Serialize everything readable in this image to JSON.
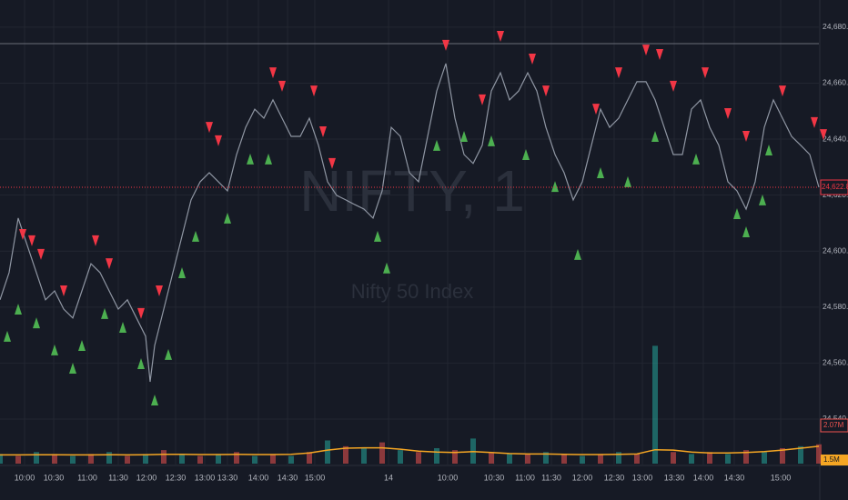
{
  "chart_data": {
    "type": "line",
    "watermark_title": "NIFTY, 1",
    "watermark_subtitle": "Nifty 50 Index",
    "xlim": [
      0,
      900
    ],
    "ylim": [
      24538.7,
      24689.7
    ],
    "yticks": [
      {
        "value": 24540,
        "label": "24,540.00"
      },
      {
        "value": 24560,
        "label": "24,560.00"
      },
      {
        "value": 24580,
        "label": "24,580.00"
      },
      {
        "value": 24600,
        "label": "24,600.00"
      },
      {
        "value": 24620,
        "label": "24,620.00"
      },
      {
        "value": 24640,
        "label": "24,640.00"
      },
      {
        "value": 24660,
        "label": "24,660.00"
      },
      {
        "value": 24680,
        "label": "24,680.00"
      }
    ],
    "xticks": [
      {
        "value": 27,
        "label": "10:00"
      },
      {
        "value": 59,
        "label": "10:30"
      },
      {
        "value": 96,
        "label": "11:00"
      },
      {
        "value": 130,
        "label": "11:30"
      },
      {
        "value": 161,
        "label": "12:00"
      },
      {
        "value": 193,
        "label": "12:30"
      },
      {
        "value": 225,
        "label": "13:00"
      },
      {
        "value": 250,
        "label": "13:30"
      },
      {
        "value": 284,
        "label": "14:00"
      },
      {
        "value": 316,
        "label": "14:30"
      },
      {
        "value": 346,
        "label": "15:00"
      },
      {
        "value": 427,
        "label": "14"
      },
      {
        "value": 492,
        "label": "10:00"
      },
      {
        "value": 543,
        "label": "10:30"
      },
      {
        "value": 577,
        "label": "11:00"
      },
      {
        "value": 606,
        "label": "11:30"
      },
      {
        "value": 640,
        "label": "12:00"
      },
      {
        "value": 675,
        "label": "12:30"
      },
      {
        "value": 706,
        "label": "13:00"
      },
      {
        "value": 741,
        "label": "13:30"
      },
      {
        "value": 773,
        "label": "14:00"
      },
      {
        "value": 807,
        "label": "14:30"
      },
      {
        "value": 858,
        "label": "15:00"
      }
    ],
    "grid": true,
    "reference_line": 24674.1,
    "last_price": {
      "value": 24622.8,
      "label": "24,622.80"
    },
    "x": [
      0,
      10,
      20,
      30,
      40,
      50,
      60,
      70,
      80,
      90,
      100,
      110,
      120,
      130,
      140,
      150,
      160,
      165,
      170,
      180,
      190,
      200,
      210,
      220,
      230,
      240,
      250,
      260,
      270,
      280,
      290,
      300,
      310,
      320,
      330,
      340,
      350,
      360,
      370,
      380,
      390,
      400,
      410,
      420,
      430,
      440,
      450,
      460,
      470,
      480,
      490,
      500,
      510,
      520,
      530,
      540,
      550,
      560,
      570,
      580,
      590,
      600,
      610,
      620,
      630,
      640,
      650,
      660,
      670,
      680,
      690,
      700,
      710,
      720,
      730,
      740,
      750,
      760,
      770,
      780,
      790,
      800,
      810,
      820,
      830,
      840,
      850,
      860,
      870,
      880,
      890,
      900
    ],
    "series": [
      {
        "name": "NIFTY",
        "color": "#8f96a3",
        "values": [
          24582.6,
          24592.3,
          24611.8,
          24602.0,
          24592.3,
          24582.6,
          24585.8,
          24579.3,
          24576.1,
          24585.8,
          24595.5,
          24592.3,
          24585.8,
          24579.3,
          24582.6,
          24576.1,
          24569.6,
          24553.3,
          24566.3,
          24579.3,
          24592.3,
          24605.3,
          24618.3,
          24624.8,
          24628.0,
          24624.8,
          24621.5,
          24634.5,
          24644.2,
          24650.7,
          24647.5,
          24654.0,
          24647.5,
          24641.0,
          24641.0,
          24647.5,
          24637.8,
          24624.8,
          24619.9,
          24618.3,
          24616.6,
          24615.0,
          24611.8,
          24621.5,
          24644.2,
          24641.0,
          24628.0,
          24624.8,
          24641.0,
          24657.2,
          24667.0,
          24647.5,
          24634.5,
          24631.3,
          24637.8,
          24657.2,
          24663.7,
          24654.0,
          24657.2,
          24663.7,
          24657.2,
          24644.2,
          24634.5,
          24628.0,
          24618.3,
          24624.8,
          24637.8,
          24650.7,
          24644.2,
          24647.5,
          24654.0,
          24660.5,
          24660.5,
          24654.0,
          24644.2,
          24634.5,
          24634.5,
          24650.7,
          24654.0,
          24644.2,
          24637.8,
          24624.8,
          24621.5,
          24615.0,
          24624.8,
          24644.2,
          24654.0,
          24647.5,
          24641.0,
          24637.8,
          24634.5,
          24622.8
        ]
      }
    ],
    "sell_signals": {
      "color": "#f23645",
      "x": [
        25,
        35,
        45,
        70,
        105,
        120,
        155,
        175,
        230,
        240,
        300,
        310,
        345,
        355,
        365,
        490,
        530,
        550,
        585,
        600,
        655,
        680,
        710,
        725,
        740,
        775,
        800,
        820,
        860,
        895,
        905
      ],
      "values": [
        24605.9,
        24603.7,
        24598.8,
        24585.8,
        24603.7,
        24595.5,
        24577.7,
        24585.8,
        24644.2,
        24639.4,
        24663.7,
        24658.9,
        24657.2,
        24642.6,
        24631.3,
        24673.5,
        24654.0,
        24676.7,
        24668.6,
        24657.2,
        24650.7,
        24663.7,
        24671.8,
        24670.2,
        24658.9,
        24663.7,
        24649.1,
        24641.0,
        24657.2,
        24645.9,
        24641.6
      ]
    },
    "buy_signals": {
      "color": "#4caf50",
      "x": [
        8,
        20,
        40,
        60,
        80,
        90,
        115,
        135,
        155,
        170,
        185,
        200,
        215,
        250,
        275,
        295,
        415,
        425,
        480,
        510,
        540,
        578,
        610,
        635,
        660,
        690,
        720,
        765,
        810,
        820,
        838,
        845
      ],
      "values": [
        24569.6,
        24579.3,
        24574.4,
        24564.7,
        24558.2,
        24566.3,
        24577.7,
        24572.8,
        24559.8,
        24546.8,
        24563.1,
        24592.3,
        24605.3,
        24611.8,
        24632.9,
        24632.9,
        24605.3,
        24594.0,
        24637.8,
        24641.0,
        24639.4,
        24634.5,
        24623.1,
        24598.8,
        24628.0,
        24624.8,
        24641.0,
        24632.9,
        24613.4,
        24606.9,
        24618.3,
        24636.1
      ]
    },
    "volume": {
      "ylim": [
        0,
        8
      ],
      "label": "2.07M",
      "ma_label": "1.5M",
      "up_color": "#26a69a",
      "down_color": "#ef5350",
      "ma_color": "#f5a623",
      "x": [
        0,
        20,
        40,
        60,
        80,
        100,
        120,
        140,
        160,
        180,
        200,
        220,
        240,
        260,
        280,
        300,
        320,
        340,
        360,
        380,
        400,
        420,
        440,
        460,
        480,
        500,
        520,
        540,
        560,
        580,
        600,
        620,
        640,
        660,
        680,
        700,
        720,
        740,
        760,
        780,
        800,
        820,
        840,
        860,
        880,
        900
      ],
      "values": [
        0.5,
        0.4,
        0.6,
        0.5,
        0.4,
        0.5,
        0.6,
        0.4,
        0.5,
        0.7,
        0.5,
        0.4,
        0.5,
        0.6,
        0.4,
        0.5,
        0.4,
        0.6,
        1.2,
        0.9,
        0.8,
        1.1,
        0.7,
        0.6,
        0.8,
        0.7,
        1.3,
        0.6,
        0.5,
        0.5,
        0.6,
        0.5,
        0.4,
        0.5,
        0.6,
        0.5,
        6.1,
        0.6,
        0.5,
        0.6,
        0.5,
        0.7,
        0.6,
        0.8,
        0.9,
        1.0
      ],
      "ma_values": [
        0.45,
        0.45,
        0.46,
        0.46,
        0.45,
        0.45,
        0.46,
        0.45,
        0.46,
        0.48,
        0.48,
        0.47,
        0.47,
        0.48,
        0.47,
        0.47,
        0.48,
        0.55,
        0.7,
        0.8,
        0.82,
        0.82,
        0.75,
        0.65,
        0.6,
        0.58,
        0.62,
        0.58,
        0.52,
        0.5,
        0.5,
        0.48,
        0.47,
        0.47,
        0.48,
        0.5,
        0.72,
        0.7,
        0.6,
        0.55,
        0.55,
        0.58,
        0.62,
        0.7,
        0.8,
        0.9
      ]
    }
  }
}
